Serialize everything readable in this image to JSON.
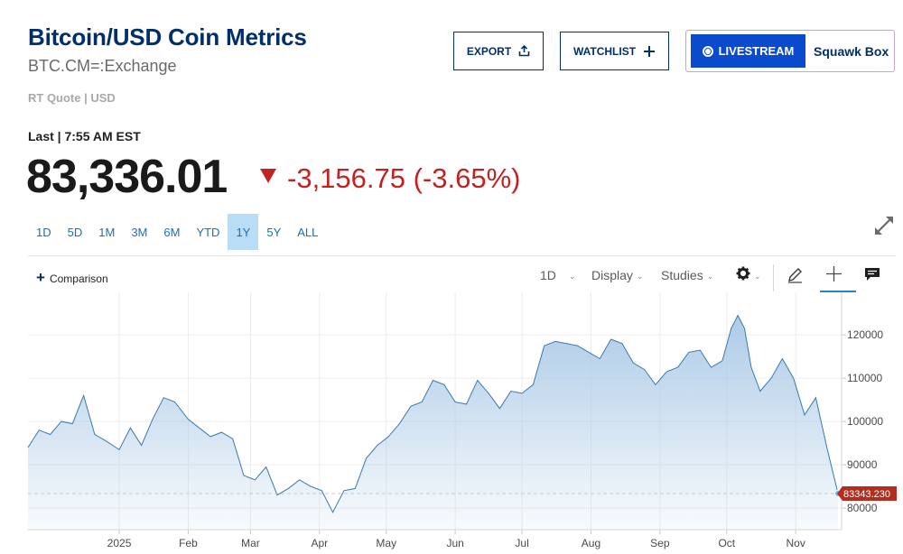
{
  "header": {
    "title": "Bitcoin/USD Coin Metrics",
    "symbol": "BTC.CM=:Exchange",
    "quote_type": "RT Quote | USD"
  },
  "actions": {
    "export_label": "EXPORT",
    "watchlist_label": "WATCHLIST",
    "livestream_label": "LIVESTREAM",
    "squawk_label": "Squawk Box"
  },
  "quote": {
    "last_label": "Last | 7:55 AM EST",
    "price": "83,336.01",
    "change": "-3,156.75 (-3.65%)",
    "direction": "down",
    "down_color": "#c32222"
  },
  "ranges": [
    "1D",
    "5D",
    "1M",
    "3M",
    "6M",
    "YTD",
    "1Y",
    "5Y",
    "ALL"
  ],
  "active_range": "1Y",
  "toolbar": {
    "comparison_label": "Comparison",
    "interval_label": "1D",
    "display_label": "Display",
    "studies_label": "Studies"
  },
  "icons": {
    "export": "upload-icon",
    "watchlist": "plus-icon",
    "expand": "expand-icon",
    "settings": "gear-icon",
    "draw": "pencil-icon",
    "crosshair": "crosshair-icon",
    "comments": "comment-icon"
  },
  "chart_data": {
    "type": "area",
    "xlabel": "",
    "ylabel": "",
    "x_tick_labels": [
      "2025",
      "Feb",
      "Mar",
      "Apr",
      "May",
      "Jun",
      "Jul",
      "Aug",
      "Sep",
      "Oct",
      "Nov"
    ],
    "y_ticks": [
      80000,
      90000,
      100000,
      110000,
      120000
    ],
    "y_tick_labels": [
      "80000",
      "90000",
      "100000",
      "110000",
      "120000"
    ],
    "ylim": [
      75000,
      129000
    ],
    "grid": true,
    "line_color": "#3a78b0",
    "fill_color": "#a9c8e6",
    "last_value_label": "83343.230",
    "last_value": 83343.23,
    "tag_color": "#b32d1f",
    "series": [
      {
        "x": [
          "2024-11-21",
          "2024-11-26",
          "2024-12-01",
          "2024-12-06",
          "2024-12-11",
          "2024-12-16",
          "2024-12-21",
          "2024-12-26",
          "2025-01-01",
          "2025-01-06",
          "2025-01-11",
          "2025-01-16",
          "2025-01-21",
          "2025-01-26",
          "2025-02-01",
          "2025-02-06",
          "2025-02-11",
          "2025-02-16",
          "2025-02-21",
          "2025-02-26",
          "2025-03-03",
          "2025-03-08",
          "2025-03-13",
          "2025-03-18",
          "2025-03-23",
          "2025-03-28",
          "2025-04-02",
          "2025-04-07",
          "2025-04-12",
          "2025-04-17",
          "2025-04-22",
          "2025-04-27",
          "2025-05-02",
          "2025-05-07",
          "2025-05-12",
          "2025-05-17",
          "2025-05-22",
          "2025-05-27",
          "2025-06-01",
          "2025-06-06",
          "2025-06-11",
          "2025-06-16",
          "2025-06-21",
          "2025-06-26",
          "2025-07-01",
          "2025-07-06",
          "2025-07-11",
          "2025-07-16",
          "2025-07-21",
          "2025-07-26",
          "2025-07-31",
          "2025-08-05",
          "2025-08-10",
          "2025-08-15",
          "2025-08-20",
          "2025-08-25",
          "2025-08-30",
          "2025-09-04",
          "2025-09-09",
          "2025-09-14",
          "2025-09-19",
          "2025-09-24",
          "2025-09-29",
          "2025-10-03",
          "2025-10-06",
          "2025-10-09",
          "2025-10-12",
          "2025-10-16",
          "2025-10-21",
          "2025-10-26",
          "2025-10-31",
          "2025-11-05",
          "2025-11-10",
          "2025-11-15",
          "2025-11-20"
        ],
        "y": [
          94000,
          98000,
          97000,
          100000,
          99500,
          106000,
          97000,
          95500,
          93500,
          98500,
          94500,
          100500,
          105500,
          104500,
          100500,
          98500,
          96500,
          97500,
          96000,
          87500,
          86500,
          89500,
          83000,
          84500,
          86500,
          85000,
          84000,
          79000,
          84000,
          84500,
          91500,
          94500,
          96500,
          99500,
          103500,
          104500,
          109500,
          108500,
          104500,
          104000,
          109500,
          106500,
          103000,
          107000,
          106500,
          108500,
          117500,
          118500,
          118000,
          117500,
          116000,
          114500,
          119000,
          118000,
          113500,
          112000,
          108500,
          111500,
          112500,
          116000,
          116500,
          112500,
          114000,
          121500,
          124500,
          121500,
          112500,
          107000,
          110000,
          114500,
          110000,
          101500,
          105500,
          94000,
          83343
        ]
      }
    ]
  }
}
